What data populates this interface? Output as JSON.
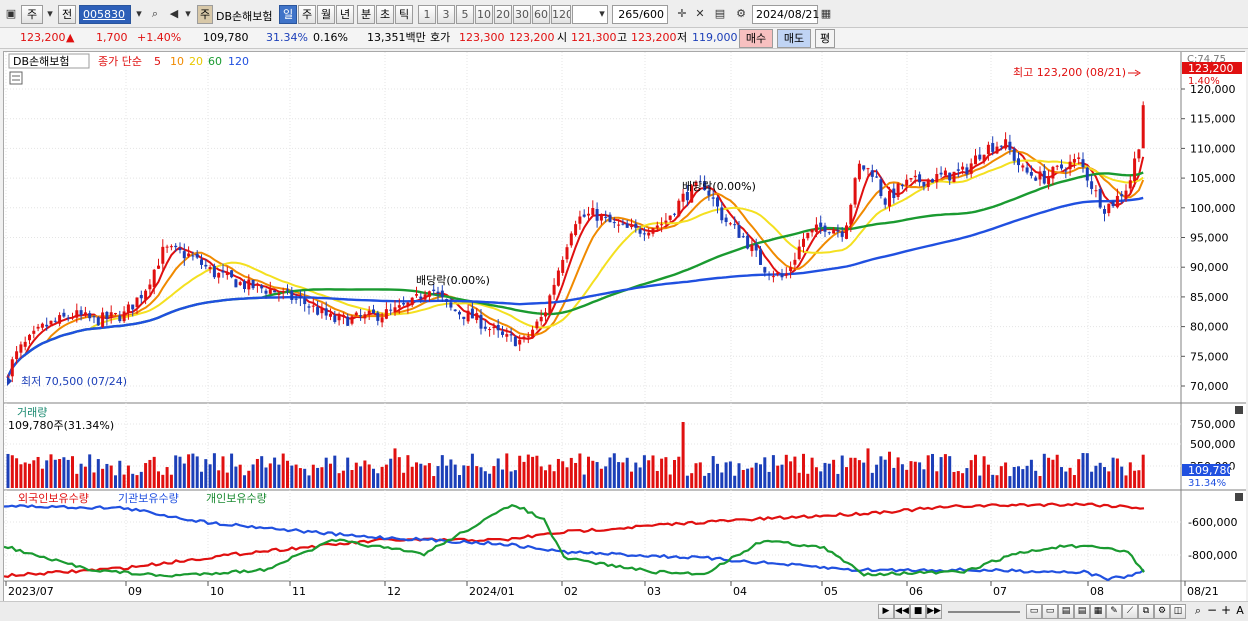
{
  "toolbar": {
    "market": "주",
    "prev": "전",
    "code": "005830",
    "stock_tag": "주",
    "stock_name": "DB손해보험",
    "periods": [
      "일",
      "주",
      "월",
      "년",
      "분",
      "초",
      "틱"
    ],
    "selected_period": "일",
    "intervals": [
      "1",
      "3",
      "5",
      "10",
      "20",
      "30",
      "60",
      "120"
    ],
    "count": "265",
    "count_max": "/600",
    "date": "2024/08/21"
  },
  "quote": {
    "price": "123,200",
    "change": "1,700",
    "change_pct": "+1.40%",
    "volume": "109,780",
    "volume_ratio": "31.34%",
    "turnover_pct": "0.16%",
    "amount": "13,351백만",
    "ask_label": "호가",
    "ask1": "123,300",
    "ask2": "123,200",
    "open_label": "시",
    "open": "121,300",
    "high_label": "고",
    "high": "123,200",
    "low_label": "저",
    "low": "119,000",
    "buy_label": "매수",
    "sell_label": "매도",
    "eval_label": "평"
  },
  "chart": {
    "legend_name": "DB손해보험",
    "legend_price": "종가 단순",
    "ma_periods": [
      "5",
      "10",
      "20",
      "60",
      "120"
    ],
    "ma_colors": [
      "#e01010",
      "#f08a00",
      "#f4e020",
      "#1a9a30",
      "#2050e0"
    ],
    "corner_value": "C:74.75",
    "price_tag": "123,200",
    "pct_tag": "1.40%",
    "high_note": "최고 123,200 (08/21)",
    "low_note": "최저 70,500 (07/24)",
    "div_note_1": "배당락(0.00%)",
    "div_note_2": "배당락(0.00%)",
    "price_axis": [
      "120,000",
      "115,000",
      "110,000",
      "105,000",
      "100,000",
      "95,000",
      "90,000",
      "85,000",
      "80,000",
      "75,000",
      "70,000"
    ],
    "volume_title": "거래량",
    "volume_value": "109,780주(31.34%)",
    "volume_axis": [
      "750,000",
      "500,000",
      "250,000"
    ],
    "volume_tag": "109,780",
    "volume_pct_tag": "31.34%",
    "holdings_legend": [
      "외국인보유수량",
      "기관보유수량",
      "개인보유수량"
    ],
    "holdings_axis": [
      "-600,000",
      "-800,000"
    ],
    "x_axis": [
      "2023/07",
      "09",
      "10",
      "11",
      "12",
      "2024/01",
      "02",
      "03",
      "04",
      "05",
      "06",
      "07",
      "08",
      "08/21"
    ]
  }
}
